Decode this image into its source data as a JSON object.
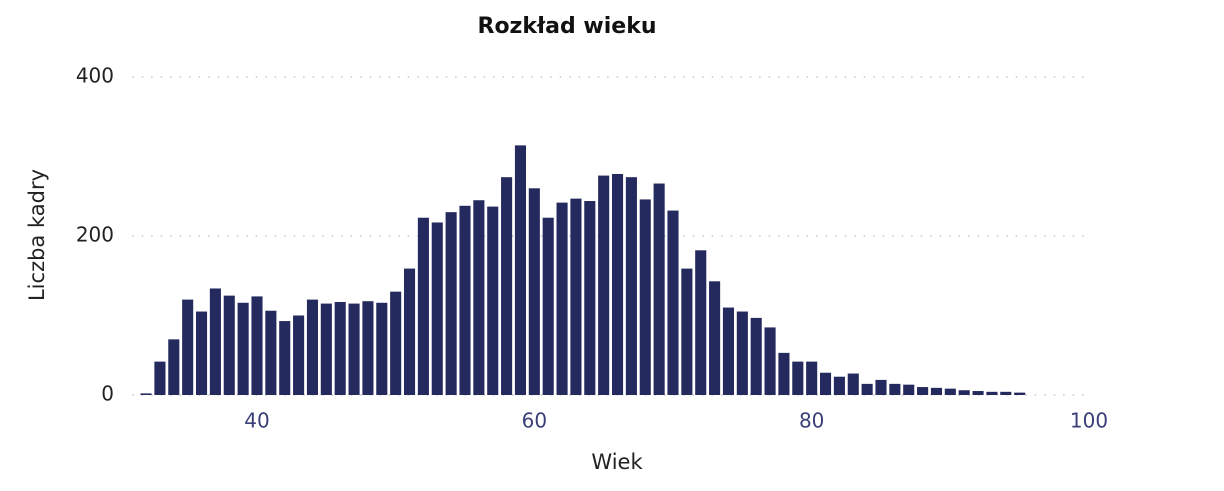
{
  "chart_data": {
    "type": "bar",
    "title": "Rozkład wieku",
    "x_label": "Wiek",
    "y_label": "Liczba kadry",
    "x": [
      32,
      33,
      34,
      35,
      36,
      37,
      38,
      39,
      40,
      41,
      42,
      43,
      44,
      45,
      46,
      47,
      48,
      49,
      50,
      51,
      52,
      53,
      54,
      55,
      56,
      57,
      58,
      59,
      60,
      61,
      62,
      63,
      64,
      65,
      66,
      67,
      68,
      69,
      70,
      71,
      72,
      73,
      74,
      75,
      76,
      77,
      78,
      79,
      80,
      81,
      82,
      83,
      84,
      85,
      86,
      87,
      88,
      89,
      90,
      91,
      92,
      93,
      94,
      95
    ],
    "values": [
      2,
      42,
      70,
      120,
      105,
      134,
      125,
      116,
      124,
      106,
      93,
      100,
      120,
      115,
      117,
      115,
      118,
      116,
      130,
      159,
      223,
      217,
      230,
      238,
      245,
      237,
      274,
      314,
      260,
      223,
      242,
      247,
      244,
      276,
      278,
      274,
      246,
      266,
      232,
      159,
      182,
      143,
      110,
      105,
      97,
      85,
      53,
      42,
      42,
      28,
      23,
      27,
      14,
      19,
      14,
      13,
      10,
      9,
      8,
      6,
      5,
      4,
      4,
      3
    ],
    "color": "#252a5e",
    "xlim": [
      31,
      100
    ],
    "xticks": [
      40,
      60,
      80,
      100
    ],
    "ylim": [
      0,
      400
    ],
    "yticks": [
      0,
      200,
      400
    ],
    "grid": true
  }
}
